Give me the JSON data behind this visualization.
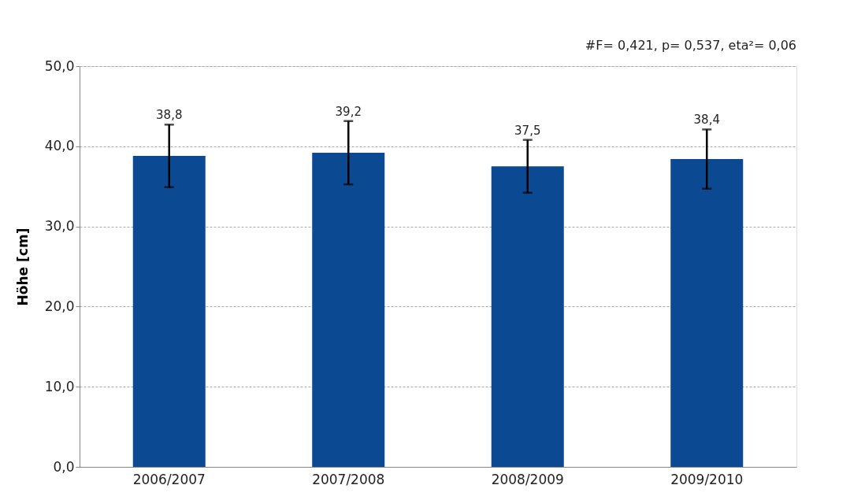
{
  "chart_data": {
    "type": "bar",
    "ylabel": "Höhe  [cm]",
    "categories": [
      "2006/2007",
      "2007/2008",
      "2008/2009",
      "2009/2010"
    ],
    "values": [
      38.8,
      39.2,
      37.5,
      38.4
    ],
    "errors": [
      3.9,
      3.95,
      3.3,
      3.7
    ],
    "color": "#0b4a93",
    "value_labels": [
      "38,8",
      "39,2",
      "37,5",
      "38,4"
    ],
    "ylim": [
      0,
      50
    ],
    "yticks": [
      {
        "value": 0,
        "label": "0,0"
      },
      {
        "value": 10,
        "label": "10,0"
      },
      {
        "value": 20,
        "label": "20,0"
      },
      {
        "value": 30,
        "label": "30,0"
      },
      {
        "value": 40,
        "label": "40,0"
      },
      {
        "value": 50,
        "label": "50,0"
      }
    ],
    "grid": "y",
    "annotations": [
      "#F= 0,421, p= 0,537, eta²= 0,06"
    ]
  }
}
